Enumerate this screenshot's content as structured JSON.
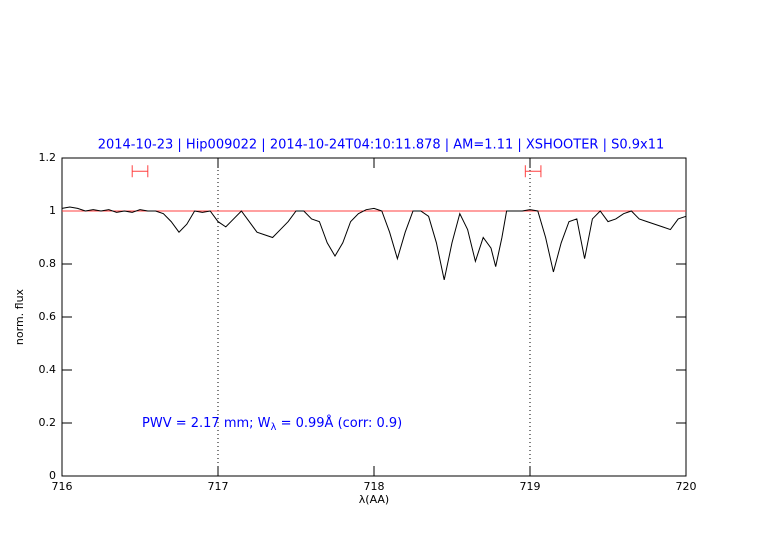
{
  "chart_data": {
    "type": "line",
    "title": "2014-10-23 | Hip009022 | 2014-10-24T04:10:11.878 | AM=1.11 | XSHOOTER | S0.9x11",
    "x_label": "λ(AA)",
    "y_label": "norm. flux",
    "annotation": {
      "main": "PWV = 2.17 mm; W",
      "sub": "λ",
      "rest": " = 0.99Å  (corr: 0.9)"
    },
    "xlim": [
      716,
      720
    ],
    "ylim": [
      0,
      1.2
    ],
    "xticks": [
      716,
      717,
      718,
      719,
      720
    ],
    "yticks": [
      0,
      0.2,
      0.4,
      0.6,
      0.8,
      1,
      1.2
    ],
    "grid": false,
    "reference_line": {
      "value": 1,
      "color": "#ff4040"
    },
    "vlines": [
      717,
      719
    ],
    "range_markers": {
      "color": "#ff4040",
      "y": 1.15,
      "ranges": [
        [
          716.45,
          716.55
        ],
        [
          718.97,
          719.07
        ]
      ]
    },
    "x": [
      716.0,
      716.05,
      716.1,
      716.15,
      716.2,
      716.25,
      716.3,
      716.35,
      716.4,
      716.45,
      716.5,
      716.55,
      716.6,
      716.65,
      716.7,
      716.75,
      716.8,
      716.85,
      716.9,
      716.95,
      717.0,
      717.05,
      717.1,
      717.15,
      717.2,
      717.25,
      717.3,
      717.35,
      717.4,
      717.45,
      717.5,
      717.55,
      717.6,
      717.65,
      717.7,
      717.75,
      717.8,
      717.85,
      717.9,
      717.95,
      718.0,
      718.05,
      718.1,
      718.15,
      718.2,
      718.25,
      718.3,
      718.35,
      718.4,
      718.45,
      718.5,
      718.55,
      718.6,
      718.65,
      718.7,
      718.75,
      718.78,
      718.82,
      718.85,
      718.9,
      718.95,
      719.0,
      719.05,
      719.1,
      719.15,
      719.2,
      719.25,
      719.3,
      719.35,
      719.4,
      719.45,
      719.5,
      719.55,
      719.6,
      719.65,
      719.7,
      719.75,
      719.8,
      719.85,
      719.9,
      719.95,
      720.0
    ],
    "series": [
      {
        "color": "#000000",
        "values": [
          1.01,
          1.015,
          1.01,
          1.0,
          1.005,
          1.0,
          1.005,
          0.995,
          1.0,
          0.995,
          1.005,
          1.0,
          1.0,
          0.99,
          0.96,
          0.92,
          0.95,
          1.0,
          0.995,
          1.0,
          0.96,
          0.94,
          0.97,
          1.0,
          0.96,
          0.92,
          0.91,
          0.9,
          0.93,
          0.96,
          1.0,
          1.0,
          0.97,
          0.96,
          0.88,
          0.83,
          0.88,
          0.96,
          0.99,
          1.005,
          1.01,
          1.0,
          0.92,
          0.82,
          0.92,
          1.0,
          1.0,
          0.98,
          0.88,
          0.74,
          0.88,
          0.99,
          0.93,
          0.81,
          0.9,
          0.86,
          0.79,
          0.9,
          1.0,
          1.0,
          1.0,
          1.005,
          1.0,
          0.9,
          0.77,
          0.88,
          0.96,
          0.97,
          0.82,
          0.97,
          1.0,
          0.96,
          0.97,
          0.99,
          1.0,
          0.97,
          0.96,
          0.95,
          0.94,
          0.93,
          0.97,
          0.98
        ]
      }
    ]
  }
}
